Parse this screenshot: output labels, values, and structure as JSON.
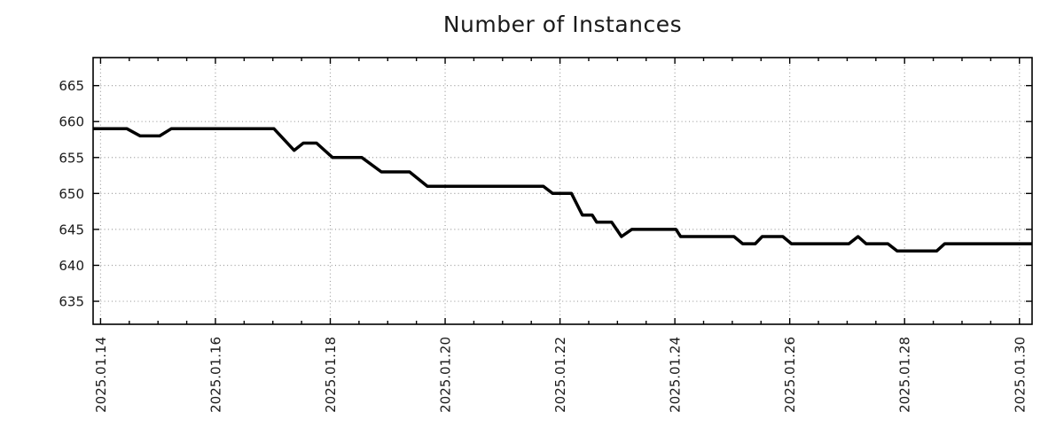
{
  "title": "Number of Instances",
  "chart_data": {
    "type": "line",
    "title": "Number of Instances",
    "xlabel": "",
    "ylabel": "",
    "legend": "none",
    "grid": "dotted-major-both-axes",
    "line_color": "#000000",
    "grid_color": "#9e9e9e",
    "axis_color": "#000000",
    "text_color": "#1a1a1a",
    "background_color": "#ffffff",
    "ylim": [
      631.8,
      668.9
    ],
    "yticks": [
      635,
      640,
      645,
      650,
      655,
      660,
      665
    ],
    "xlim": [
      -0.13,
      16.22
    ],
    "x_unit": "days since 2025.01.14",
    "x_minor_tick_step": 0.5,
    "xticks": [
      {
        "t": 0,
        "label": "2025.01.14"
      },
      {
        "t": 2,
        "label": "2025.01.16"
      },
      {
        "t": 4,
        "label": "2025.01.18"
      },
      {
        "t": 6,
        "label": "2025.01.20"
      },
      {
        "t": 8,
        "label": "2025.01.22"
      },
      {
        "t": 10,
        "label": "2025.01.24"
      },
      {
        "t": 12,
        "label": "2025.01.26"
      },
      {
        "t": 14,
        "label": "2025.01.28"
      },
      {
        "t": 16,
        "label": "2025.01.30"
      }
    ],
    "points": [
      [
        -0.13,
        659
      ],
      [
        0.46,
        659
      ],
      [
        0.69,
        658
      ],
      [
        1.03,
        658
      ],
      [
        1.23,
        659
      ],
      [
        3.02,
        659
      ],
      [
        3.37,
        656
      ],
      [
        3.53,
        657
      ],
      [
        3.76,
        657
      ],
      [
        4.04,
        655
      ],
      [
        4.55,
        655
      ],
      [
        4.89,
        653
      ],
      [
        5.38,
        653
      ],
      [
        5.69,
        651
      ],
      [
        7.71,
        651
      ],
      [
        7.87,
        650
      ],
      [
        8.2,
        650
      ],
      [
        8.39,
        647
      ],
      [
        8.56,
        647
      ],
      [
        8.64,
        646
      ],
      [
        8.9,
        646
      ],
      [
        9.07,
        644
      ],
      [
        9.25,
        645
      ],
      [
        10.02,
        645
      ],
      [
        10.1,
        644
      ],
      [
        11.03,
        644
      ],
      [
        11.18,
        643
      ],
      [
        11.4,
        643
      ],
      [
        11.52,
        644
      ],
      [
        11.88,
        644
      ],
      [
        12.03,
        643
      ],
      [
        13.03,
        643
      ],
      [
        13.19,
        644
      ],
      [
        13.33,
        643
      ],
      [
        13.71,
        643
      ],
      [
        13.87,
        642
      ],
      [
        14.56,
        642
      ],
      [
        14.7,
        643
      ],
      [
        16.22,
        643
      ]
    ]
  }
}
